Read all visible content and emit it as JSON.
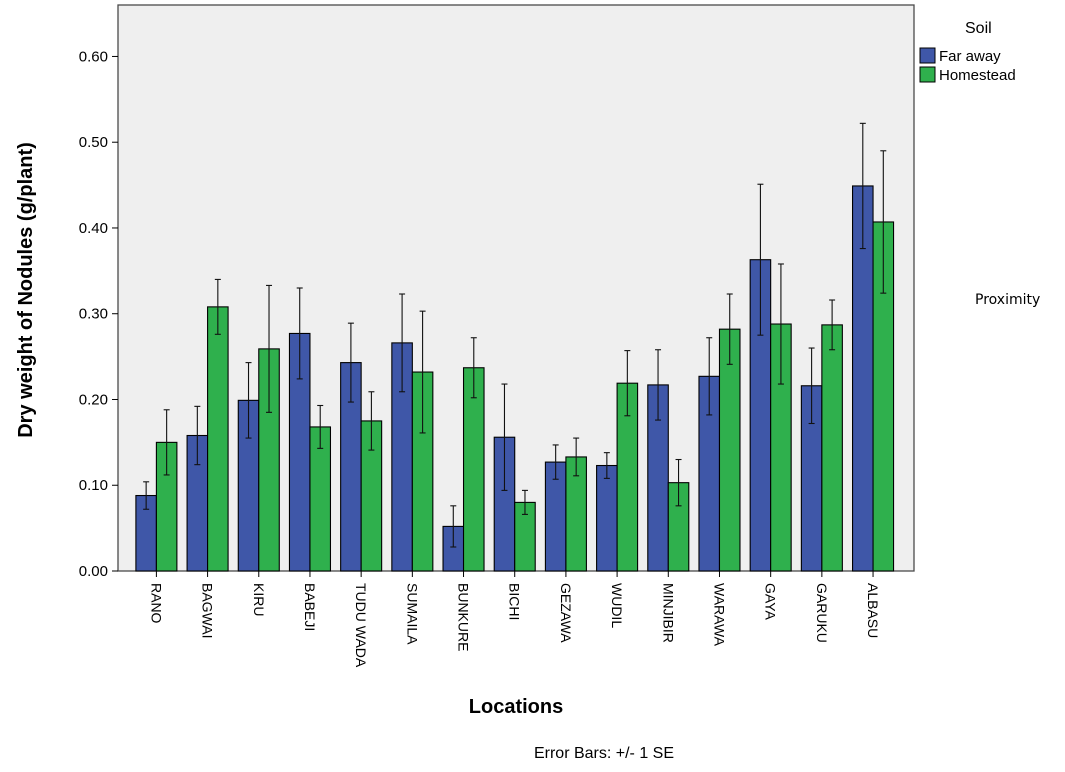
{
  "chart_data": {
    "type": "bar",
    "ylabel": "Dry weight of Nodules (g/plant)",
    "xlabel": "Locations",
    "ylim": [
      0,
      0.66
    ],
    "yticks": [
      "0.00",
      "0.10",
      "0.20",
      "0.30",
      "0.40",
      "0.50",
      "0.60"
    ],
    "categories": [
      "RANO",
      "BAGWAI",
      "KIRU",
      "BABEJI",
      "TUDU WADA",
      "SUMAILA",
      "BUNKURE",
      "BICHI",
      "GEZAWA",
      "WUDIL",
      "MINJIBIR",
      "WARAWA",
      "GAYA",
      "GARUKU",
      "ALBASU"
    ],
    "legend_title": "Soil",
    "legend_position": "top-right, outside plot",
    "series": [
      {
        "name": "Far away",
        "color": "#3f57a8",
        "values": [
          0.088,
          0.158,
          0.199,
          0.277,
          0.243,
          0.266,
          0.052,
          0.156,
          0.127,
          0.123,
          0.217,
          0.227,
          0.363,
          0.216,
          0.449
        ],
        "se": [
          0.016,
          0.034,
          0.044,
          0.053,
          0.046,
          0.057,
          0.024,
          0.062,
          0.02,
          0.015,
          0.041,
          0.045,
          0.088,
          0.044,
          0.073
        ]
      },
      {
        "name": "Homestead",
        "color": "#2fb04d",
        "values": [
          0.15,
          0.308,
          0.259,
          0.168,
          0.175,
          0.232,
          0.237,
          0.08,
          0.133,
          0.219,
          0.103,
          0.282,
          0.288,
          0.287,
          0.407
        ],
        "se": [
          0.038,
          0.032,
          0.074,
          0.025,
          0.034,
          0.071,
          0.035,
          0.014,
          0.022,
          0.038,
          0.027,
          0.041,
          0.07,
          0.029,
          0.083
        ]
      }
    ],
    "error_bar_note": "Error Bars: +/- 1 SE",
    "side_label": "Proximity",
    "plot_background": "#efefef",
    "grid": false
  }
}
